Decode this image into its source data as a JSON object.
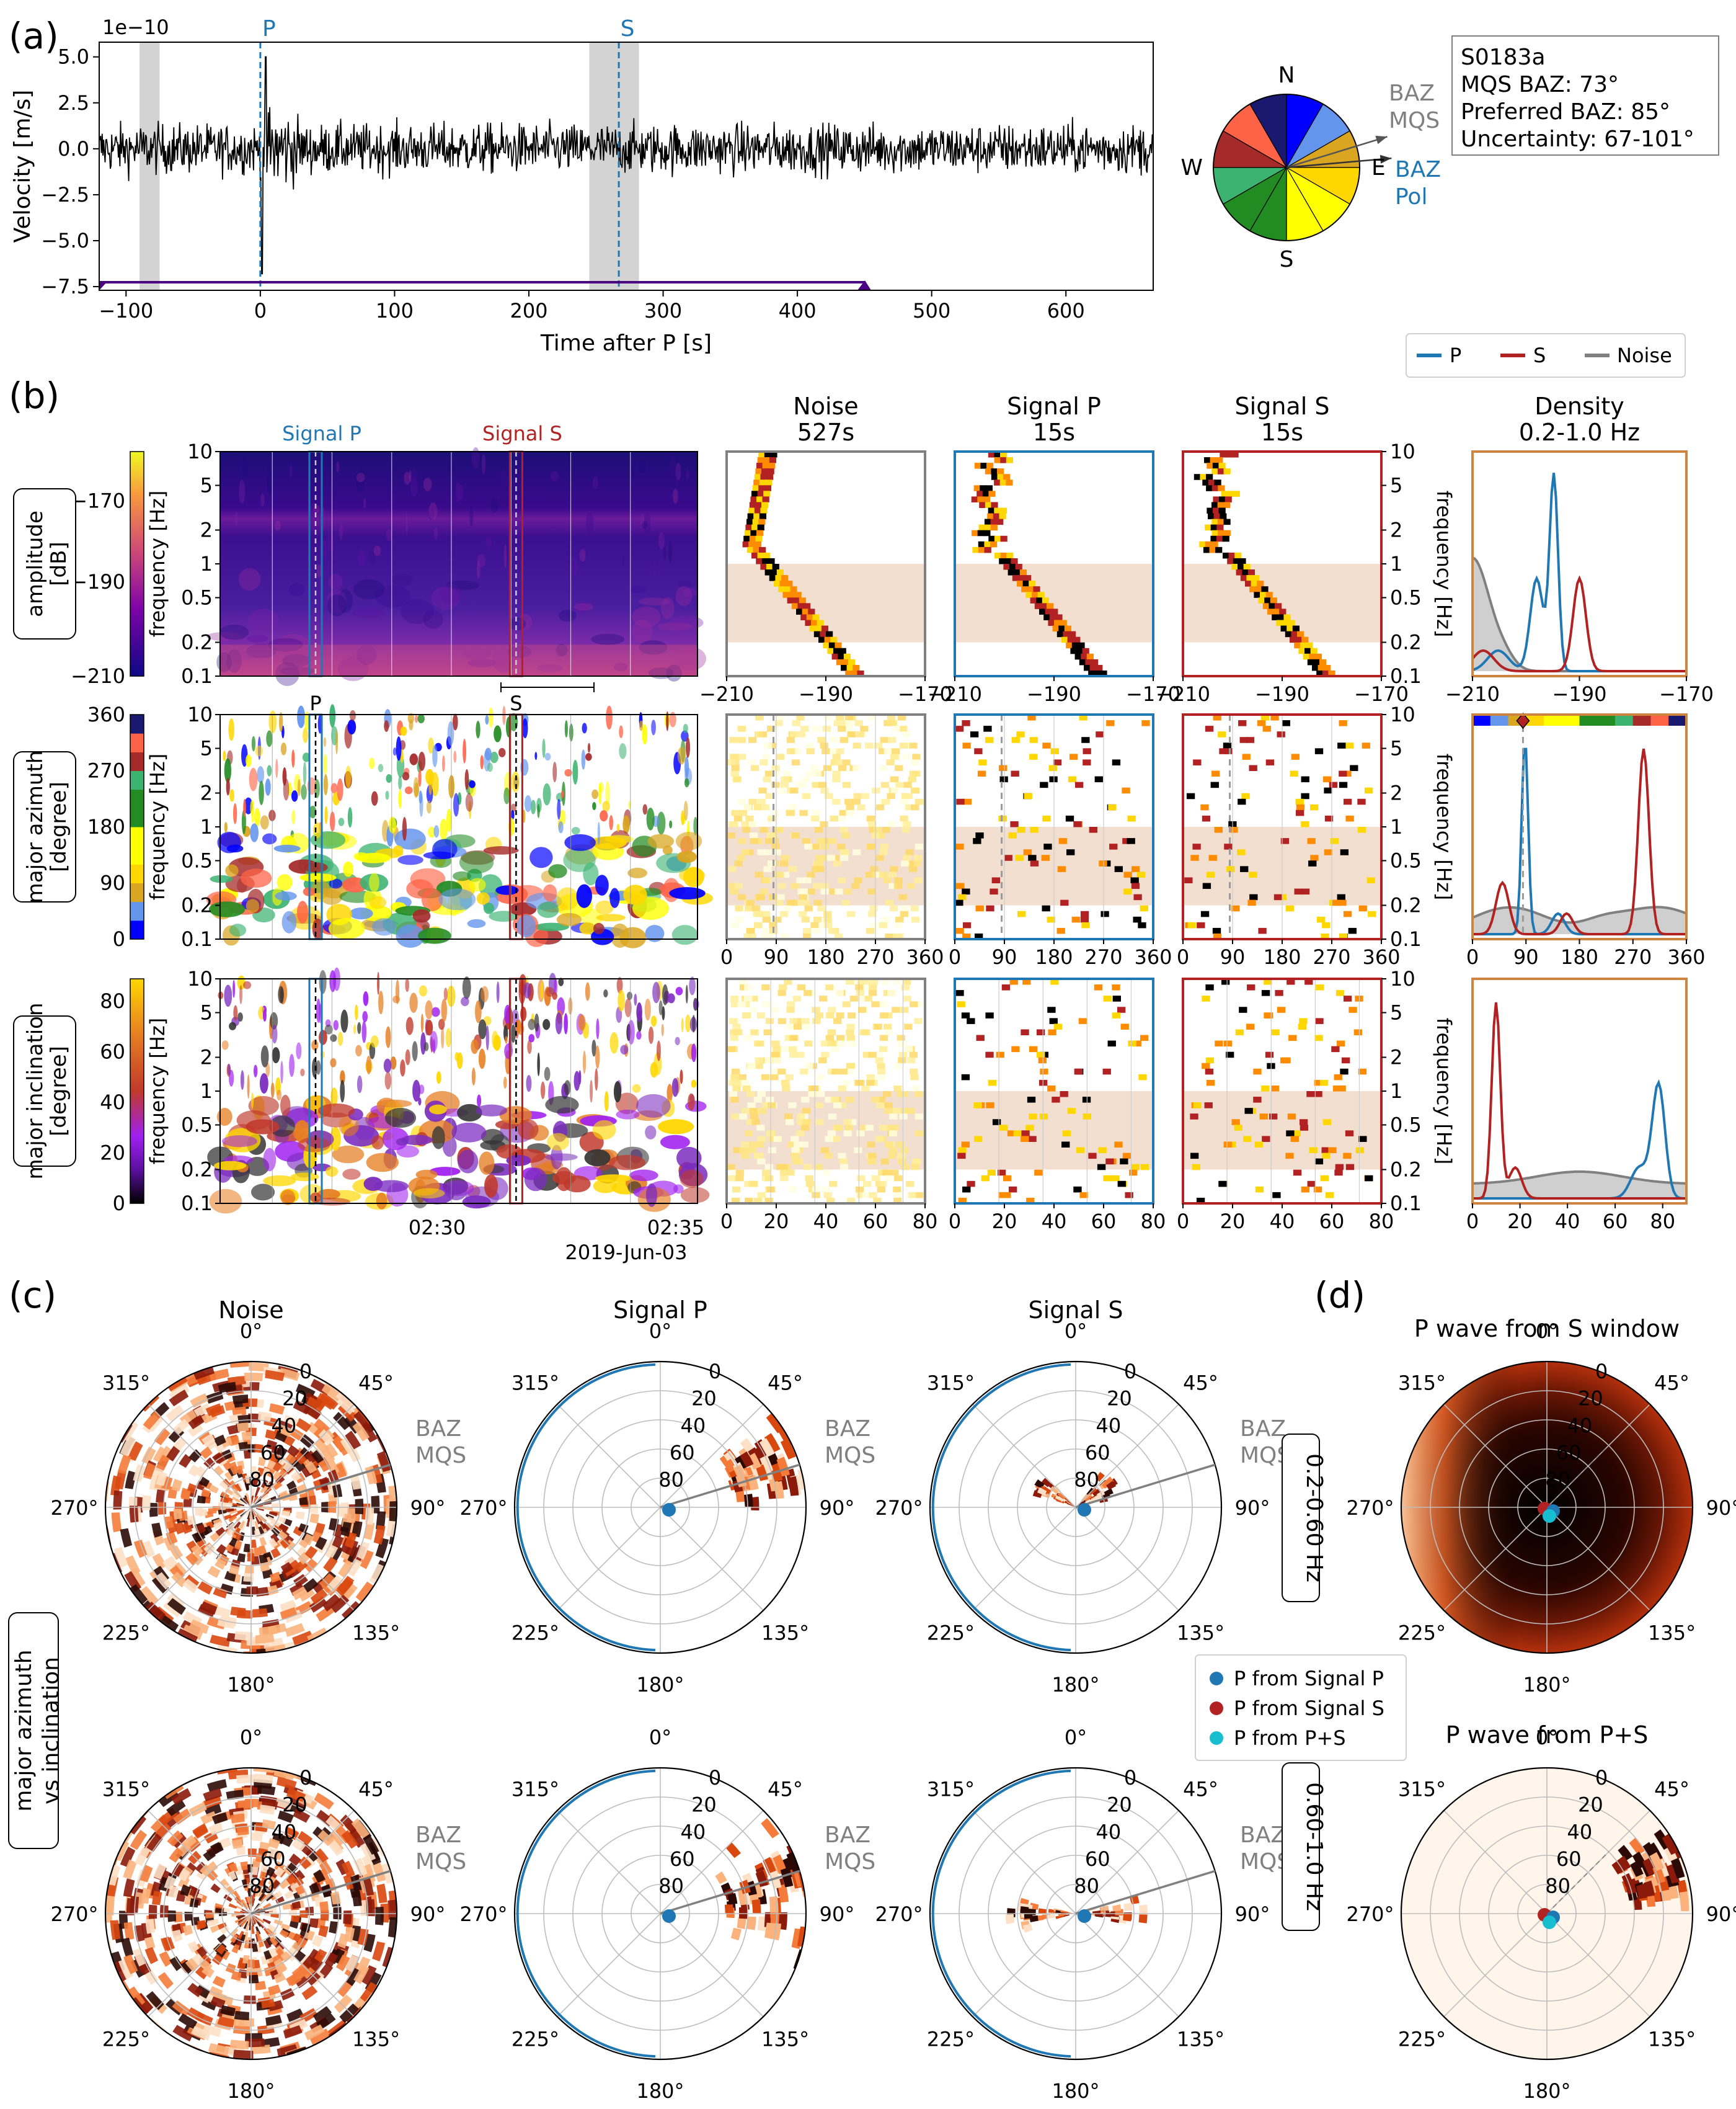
{
  "figure": {
    "panel_a": "(a)",
    "panel_b": "(b)",
    "panel_c": "(c)",
    "panel_d": "(d)"
  },
  "colors": {
    "p": "#1f77b4",
    "s": "#b22222",
    "noise": "#808080",
    "band": "#f2dfcf",
    "frame": "#cd853f",
    "ps": "#17becf"
  },
  "chart_data": [
    {
      "id": "a_seismogram",
      "type": "line",
      "xlabel": "Time after P [s]",
      "ylabel": "Velocity [m/s]",
      "y_scale_label": "1e−10",
      "xlim": [
        -120,
        665
      ],
      "ylim": [
        -7.7,
        5.8
      ],
      "xticks": [
        "−100",
        "0",
        "100",
        "200",
        "300",
        "400",
        "500",
        "600"
      ],
      "yticks": [
        "5.0",
        "2.5",
        "0.0",
        "−2.5",
        "−5.0",
        "−7.5"
      ],
      "phase_p_label": "P",
      "phase_p_time": 0,
      "phase_s_label": "S",
      "phase_s_time": 267,
      "noise_window": [
        -90,
        -75
      ],
      "s_window": [
        245,
        282
      ],
      "trace_amplitude_noise": 1.5,
      "trace_p_peak": 5.0,
      "trace_p_trough": -7.0
    },
    {
      "id": "a_baz_pie",
      "type": "pie",
      "compass": [
        "N",
        "E",
        "S",
        "W"
      ],
      "sector_colors": [
        "#0000ff",
        "#6495ed",
        "#daa520",
        "#ffd700",
        "#ffff00",
        "#ffff00",
        "#228b22",
        "#228b22",
        "#3cb371",
        "#a52a2a",
        "#ff6347",
        "#191970"
      ],
      "baz_mqs_label": "BAZ\nMQS",
      "baz_mqs": 73,
      "baz_pol_label": "BAZ\nPol",
      "baz_pol": 85,
      "info_lines": [
        "S0183a",
        "MQS BAZ: 73°",
        "Preferred BAZ: 85°",
        "Uncertainty: 67-101°"
      ]
    },
    {
      "id": "b_legend",
      "type": "table",
      "entries": [
        "P",
        "S",
        "Noise"
      ]
    },
    {
      "id": "b_spectrograms",
      "type": "heatmap",
      "row_labels": [
        "amplitude\n[dB]",
        "major azimuth\n[degree]",
        "major inclination\n[degree]"
      ],
      "colorbar_ticks": [
        [
          "−170",
          "−190",
          "−210"
        ],
        [
          "360",
          "270",
          "180",
          "90",
          "0"
        ],
        [
          "80",
          "60",
          "40",
          "20",
          "0"
        ]
      ],
      "ylabel": "frequency [Hz]",
      "yticks": [
        "10",
        "5",
        "2",
        "1",
        "0.5",
        "0.2",
        "0.1"
      ],
      "signal_p_label": "Signal P",
      "signal_s_label": "Signal S",
      "phase_p": "P",
      "phase_s": "S",
      "xticks": [
        "02:30",
        "02:35"
      ],
      "date": "2019-Jun-03"
    },
    {
      "id": "b_histograms",
      "type": "heatmap",
      "column_titles": [
        "Noise\n527s",
        "Signal P\n15s",
        "Signal S\n15s",
        "Density\n0.2-1.0 Hz"
      ],
      "row_xticks": [
        [
          "−210",
          "−190",
          "−170"
        ],
        [
          "0",
          "90",
          "180",
          "270",
          "360"
        ],
        [
          "0",
          "20",
          "40",
          "60",
          "80"
        ]
      ],
      "band_hz": [
        0.2,
        1.0
      ],
      "density_ylabel": "frequency [Hz]"
    },
    {
      "id": "c_polar",
      "type": "heatmap",
      "column_titles": [
        "Noise",
        "Signal P",
        "Signal S"
      ],
      "row_labels": [
        "0.2-0.60 Hz",
        "0.60-1.0 Hz"
      ],
      "side_label": "major azimuth\nvs inclination",
      "angle_ticks": [
        "0°",
        "45°",
        "90°",
        "135°",
        "180°",
        "225°",
        "270°",
        "315°"
      ],
      "radial_ticks": [
        "0",
        "20",
        "40",
        "60",
        "80"
      ],
      "baz_label": "BAZ\nMQS"
    },
    {
      "id": "d_polar",
      "type": "heatmap",
      "titles": [
        "P wave from S window",
        "P wave from P+S"
      ],
      "legend": [
        "P from Signal P",
        "P from Signal S",
        "P from P+S"
      ]
    }
  ]
}
